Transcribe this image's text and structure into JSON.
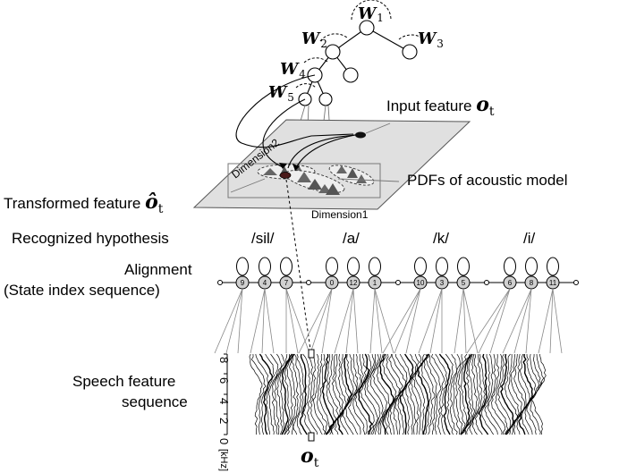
{
  "tree": {
    "nodes": [
      {
        "symbol": "W",
        "sub": "1"
      },
      {
        "symbol": "W",
        "sub": "2"
      },
      {
        "symbol": "W",
        "sub": "3"
      },
      {
        "symbol": "W",
        "sub": "4"
      },
      {
        "symbol": "W",
        "sub": "5"
      }
    ]
  },
  "feature_space": {
    "input_label": "Input feature ",
    "input_symbol": "o",
    "input_sub": "t",
    "pdf_label": "PDFs of acoustic model",
    "transformed_label": "Transformed feature ",
    "transformed_symbol": "ô",
    "transformed_sub": "t",
    "dim1": "Dimension1",
    "dim2": "Dimension2"
  },
  "hypothesis": {
    "label": "Recognized hypothesis",
    "phonemes": [
      "/sil/",
      "/a/",
      "/k/",
      "/i/"
    ]
  },
  "alignment": {
    "label_line1": "Alignment",
    "label_line2": "(State index sequence)",
    "states": [
      [
        "9",
        "4",
        "7"
      ],
      [
        "0",
        "12",
        "1"
      ],
      [
        "10",
        "3",
        "5"
      ],
      [
        "6",
        "8",
        "11"
      ]
    ]
  },
  "speech": {
    "label_line1": "Speech feature",
    "label_line2": "sequence",
    "y_ticks": [
      "0",
      "2",
      "4",
      "6",
      "8"
    ],
    "y_unit": "[kHz]",
    "frame_symbol": "o",
    "frame_sub": "t"
  }
}
